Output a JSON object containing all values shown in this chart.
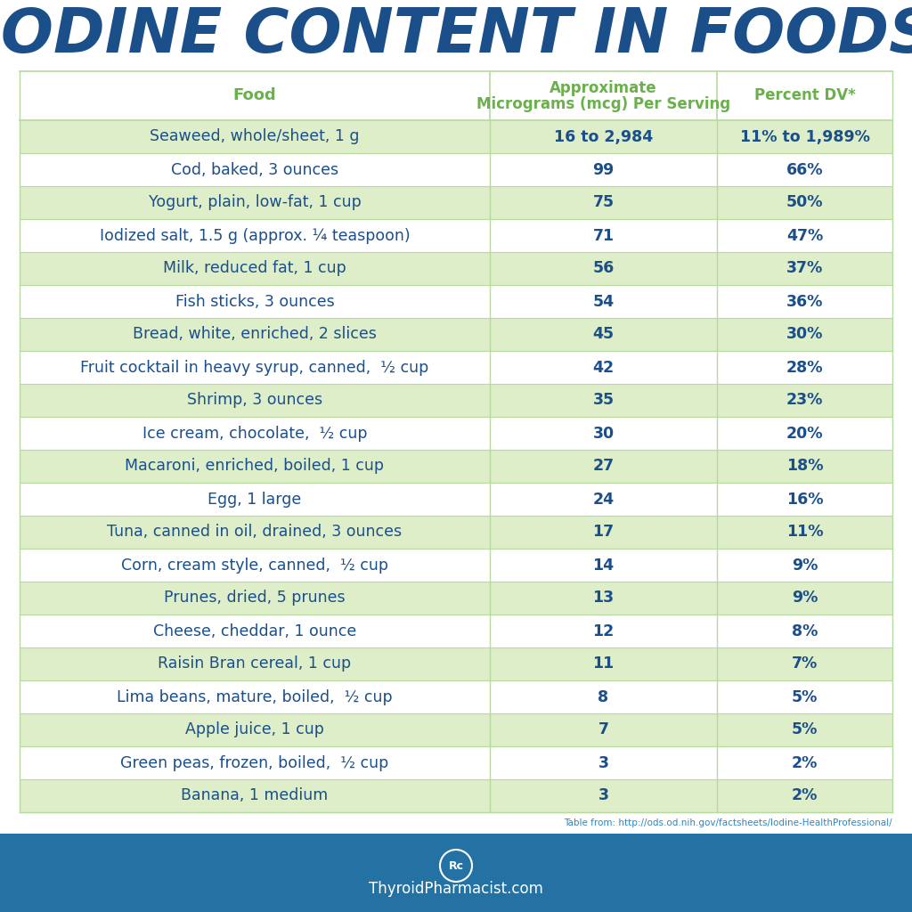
{
  "title": "IODINE CONTENT IN FOODS",
  "title_color": "#1b4f8a",
  "col1_header": "Food",
  "col2_header_line1": "Approximate",
  "col2_header_line2": "Micrograms (mcg) Per Serving",
  "col3_header": "Percent DV*",
  "header_text_color": "#6ab04c",
  "bg_color": "#ffffff",
  "footer_bg_color": "#2471a3",
  "footer_text": "ThyroidPharmacist.com",
  "source_text": "Table from: http://ods.od.nih.gov/factsheets/Iodine-HealthProfessional/",
  "source_color": "#2e86c1",
  "col_divider_color": "#b8d9a0",
  "highlight_color": "#ddeec8",
  "text_color": "#1b4f8a",
  "rows": [
    {
      "food": "Seaweed, whole/sheet, 1 g",
      "mcg": "16 to 2,984",
      "pct": "11% to 1,989%",
      "highlight": true
    },
    {
      "food": "Cod, baked, 3 ounces",
      "mcg": "99",
      "pct": "66%",
      "highlight": false
    },
    {
      "food": "Yogurt, plain, low-fat, 1 cup",
      "mcg": "75",
      "pct": "50%",
      "highlight": true
    },
    {
      "food": "Iodized salt, 1.5 g (approx. ¼ teaspoon)",
      "mcg": "71",
      "pct": "47%",
      "highlight": false
    },
    {
      "food": "Milk, reduced fat, 1 cup",
      "mcg": "56",
      "pct": "37%",
      "highlight": true
    },
    {
      "food": "Fish sticks, 3 ounces",
      "mcg": "54",
      "pct": "36%",
      "highlight": false
    },
    {
      "food": "Bread, white, enriched, 2 slices",
      "mcg": "45",
      "pct": "30%",
      "highlight": true
    },
    {
      "food": "Fruit cocktail in heavy syrup, canned,  ½ cup",
      "mcg": "42",
      "pct": "28%",
      "highlight": false
    },
    {
      "food": "Shrimp, 3 ounces",
      "mcg": "35",
      "pct": "23%",
      "highlight": true
    },
    {
      "food": "Ice cream, chocolate,  ½ cup",
      "mcg": "30",
      "pct": "20%",
      "highlight": false
    },
    {
      "food": "Macaroni, enriched, boiled, 1 cup",
      "mcg": "27",
      "pct": "18%",
      "highlight": true
    },
    {
      "food": "Egg, 1 large",
      "mcg": "24",
      "pct": "16%",
      "highlight": false
    },
    {
      "food": "Tuna, canned in oil, drained, 3 ounces",
      "mcg": "17",
      "pct": "11%",
      "highlight": true
    },
    {
      "food": "Corn, cream style, canned,  ½ cup",
      "mcg": "14",
      "pct": "9%",
      "highlight": false
    },
    {
      "food": "Prunes, dried, 5 prunes",
      "mcg": "13",
      "pct": "9%",
      "highlight": true
    },
    {
      "food": "Cheese, cheddar, 1 ounce",
      "mcg": "12",
      "pct": "8%",
      "highlight": false
    },
    {
      "food": "Raisin Bran cereal, 1 cup",
      "mcg": "11",
      "pct": "7%",
      "highlight": true
    },
    {
      "food": "Lima beans, mature, boiled,  ½ cup",
      "mcg": "8",
      "pct": "5%",
      "highlight": false
    },
    {
      "food": "Apple juice, 1 cup",
      "mcg": "7",
      "pct": "5%",
      "highlight": true
    },
    {
      "food": "Green peas, frozen, boiled,  ½ cup",
      "mcg": "3",
      "pct": "2%",
      "highlight": false
    },
    {
      "food": "Banana, 1 medium",
      "mcg": "3",
      "pct": "2%",
      "highlight": true
    }
  ]
}
